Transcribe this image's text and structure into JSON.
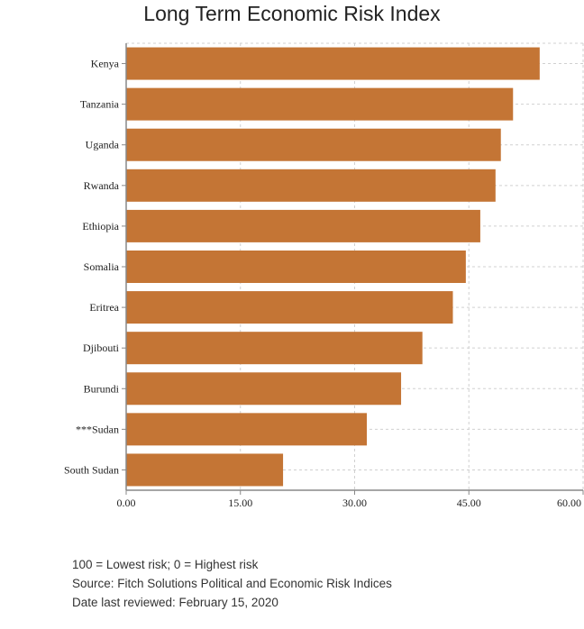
{
  "chart_data": {
    "type": "bar",
    "orientation": "horizontal",
    "title": "Long Term Economic Risk Index",
    "categories": [
      "Kenya",
      "Tanzania",
      "Uganda",
      "Rwanda",
      "Ethiopia",
      "Somalia",
      "Eritrea",
      "Djibouti",
      "Burundi",
      "***Sudan",
      "South Sudan"
    ],
    "values": [
      54.3,
      50.8,
      49.2,
      48.5,
      46.5,
      44.6,
      42.9,
      38.9,
      36.1,
      31.6,
      20.6
    ],
    "xlim": [
      0,
      60
    ],
    "x_ticks": [
      "0.00",
      "15.00",
      "30.00",
      "45.00",
      "60.00"
    ],
    "grid": true,
    "bar_color": "#c47535",
    "xlabel": "",
    "ylabel": ""
  },
  "notes": [
    "100 = Lowest risk; 0 = Highest risk",
    "Source: Fitch Solutions Political and Economic Risk Indices",
    "Date last reviewed: February 15, 2020"
  ]
}
